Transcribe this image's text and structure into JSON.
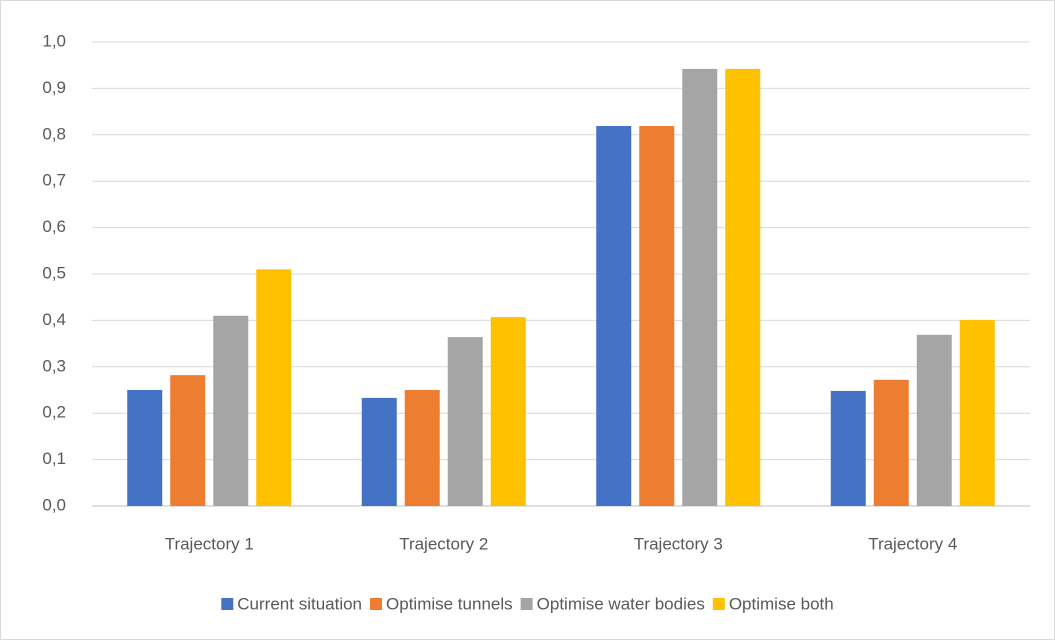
{
  "chart_data": {
    "type": "bar",
    "categories": [
      "Trajectory 1",
      "Trajectory 2",
      "Trajectory 3",
      "Trajectory 4"
    ],
    "series": [
      {
        "name": "Current situation",
        "color": "#4472c4",
        "values": [
          0.25,
          0.233,
          0.819,
          0.248
        ]
      },
      {
        "name": "Optimise tunnels",
        "color": "#ed7d31",
        "values": [
          0.282,
          0.25,
          0.819,
          0.272
        ]
      },
      {
        "name": "Optimise water bodies",
        "color": "#a5a5a5",
        "values": [
          0.41,
          0.364,
          0.942,
          0.369
        ]
      },
      {
        "name": "Optimise both",
        "color": "#ffc000",
        "values": [
          0.51,
          0.407,
          0.942,
          0.401
        ]
      }
    ],
    "ylim": [
      0,
      1
    ],
    "yticks": [
      {
        "value": 0,
        "label": "0,0"
      },
      {
        "value": 0.1,
        "label": "0,1"
      },
      {
        "value": 0.2,
        "label": "0,2"
      },
      {
        "value": 0.3,
        "label": "0,3"
      },
      {
        "value": 0.4,
        "label": "0,4"
      },
      {
        "value": 0.5,
        "label": "0,5"
      },
      {
        "value": 0.6,
        "label": "0,6"
      },
      {
        "value": 0.7,
        "label": "0,7"
      },
      {
        "value": 0.8,
        "label": "0,8"
      },
      {
        "value": 0.9,
        "label": "0,9"
      },
      {
        "value": 1,
        "label": "1,0"
      }
    ],
    "grid": true,
    "legend": "bottom"
  }
}
